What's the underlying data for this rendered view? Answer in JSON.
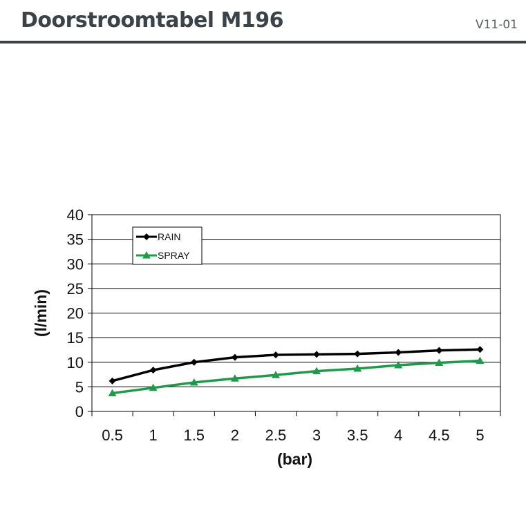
{
  "header": {
    "title": "Doorstroomtabel M196",
    "version": "V11-01"
  },
  "chart_data": {
    "type": "line",
    "title": "",
    "xlabel": "(bar)",
    "ylabel": "(l/min)",
    "categories": [
      "0.5",
      "1",
      "1.5",
      "2",
      "2.5",
      "3",
      "3.5",
      "4",
      "4.5",
      "5"
    ],
    "ylim": [
      0,
      40
    ],
    "yticks": [
      "0",
      "5",
      "10",
      "15",
      "20",
      "25",
      "30",
      "35",
      "40"
    ],
    "grid": true,
    "legend": "top-left",
    "series": [
      {
        "name": "RAIN",
        "color": "#000000",
        "marker": "diamond",
        "values": [
          6.2,
          8.4,
          10.0,
          11.0,
          11.5,
          11.6,
          11.7,
          12.0,
          12.4,
          12.6
        ]
      },
      {
        "name": "SPRAY",
        "color": "#1f9a4a",
        "marker": "triangle",
        "values": [
          3.7,
          4.8,
          5.9,
          6.7,
          7.4,
          8.2,
          8.7,
          9.4,
          9.9,
          10.3
        ]
      }
    ]
  }
}
